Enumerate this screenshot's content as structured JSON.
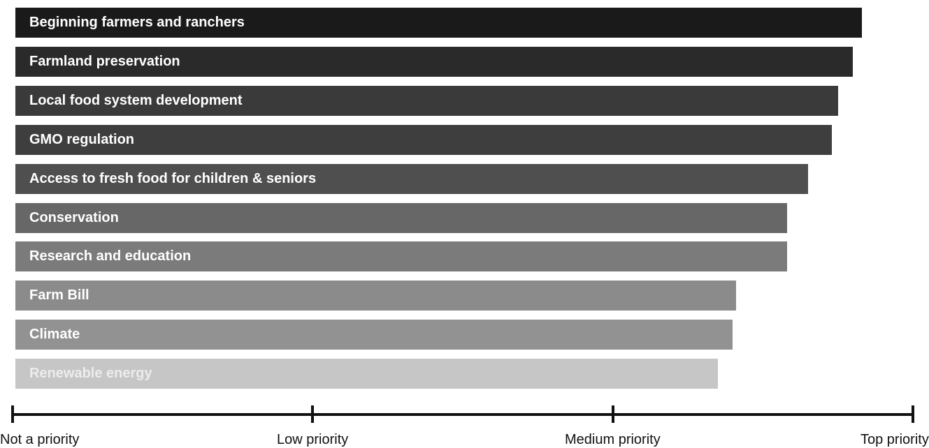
{
  "chart_data": {
    "type": "bar",
    "orientation": "horizontal",
    "categories": [
      "Beginning farmers and ranchers",
      "Farmland preservation",
      "Local food system development",
      "GMO regulation",
      "Access to fresh food for children & seniors",
      "Conservation",
      "Research and education",
      "Farm Bill",
      "Climate",
      "Renewable energy"
    ],
    "values": [
      2.83,
      2.8,
      2.75,
      2.73,
      2.65,
      2.58,
      2.58,
      2.41,
      2.4,
      2.35
    ],
    "xlim": [
      0,
      3
    ],
    "tick_values": [
      0,
      1,
      2,
      3
    ],
    "tick_labels": [
      "Not a priority",
      "Low priority",
      "Medium priority",
      "Top priority"
    ],
    "bar_colors": [
      "#1a1a1a",
      "#2a2a2a",
      "#3a3a3a",
      "#3e3e3e",
      "#4f4f4f",
      "#676767",
      "#7b7b7b",
      "#8b8b8b",
      "#929292",
      "#c6c6c6"
    ],
    "label_colors": [
      "#ffffff",
      "#ffffff",
      "#ffffff",
      "#ffffff",
      "#ffffff",
      "#ffffff",
      "#ffffff",
      "#ffffff",
      "#ffffff",
      "#ececec"
    ],
    "title": "",
    "xlabel": "",
    "ylabel": "",
    "grid": false,
    "legend": "none"
  }
}
